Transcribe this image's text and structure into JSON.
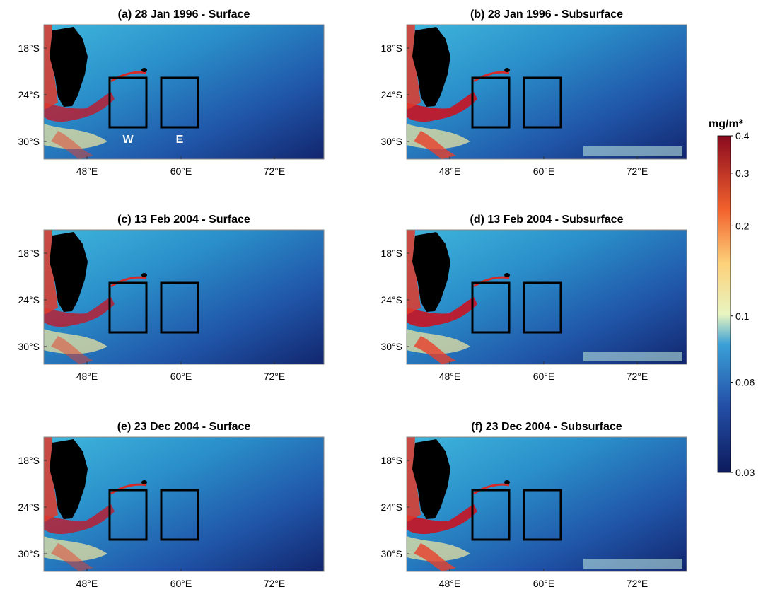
{
  "panels": [
    {
      "title": "(a) 28 Jan 1996 - Surface"
    },
    {
      "title": "(b) 28 Jan 1996 - Subsurface"
    },
    {
      "title": "(c) 13 Feb 2004 - Surface"
    },
    {
      "title": "(d) 13 Feb 2004 - Subsurface"
    },
    {
      "title": "(e) 23 Dec 2004 - Surface"
    },
    {
      "title": "(f) 23 Dec 2004 - Subsurface"
    }
  ],
  "lat_ticks": [
    "18°S",
    "24°S",
    "30°S"
  ],
  "lon_ticks": [
    "48°E",
    "60°E",
    "72°E"
  ],
  "box_labels": [
    "W",
    "E"
  ],
  "colorbar": {
    "label": "mg/m³",
    "ticks": [
      0.4,
      0.3,
      0.2,
      0.1,
      0.06,
      0.03
    ]
  }
}
